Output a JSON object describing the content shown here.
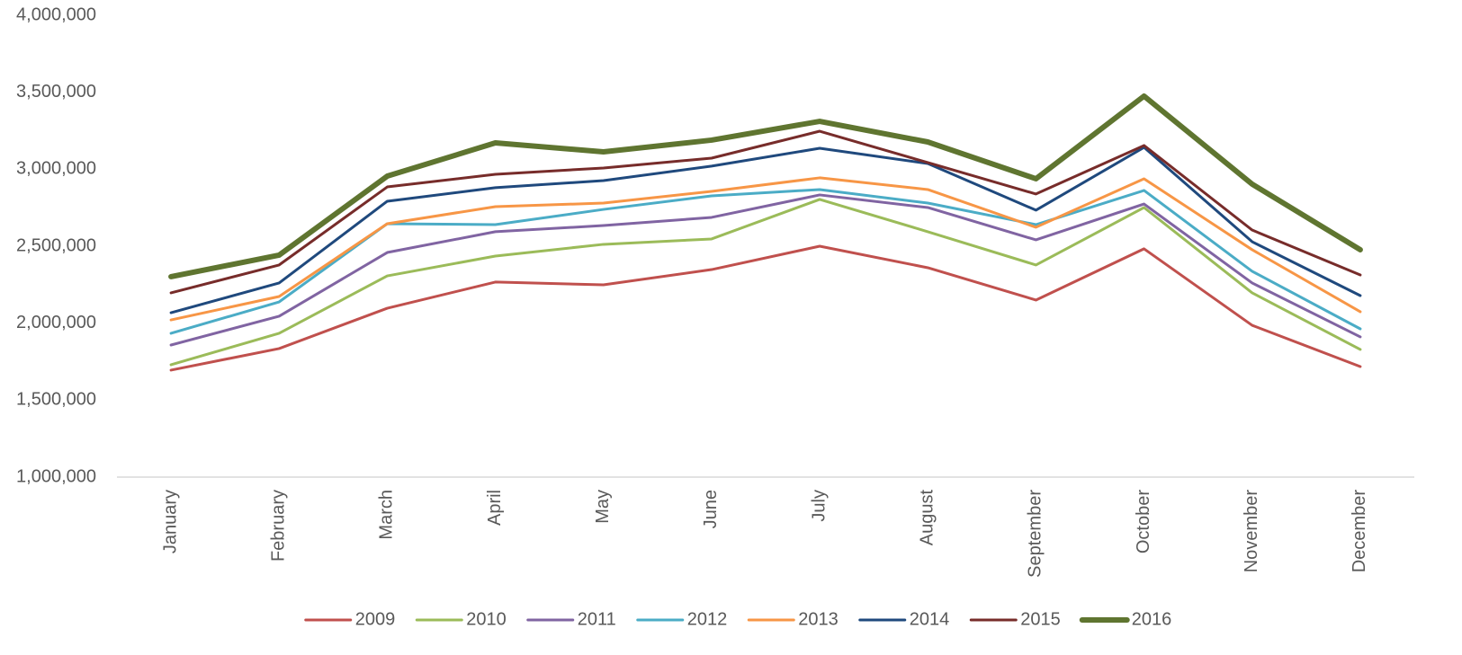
{
  "chart_data": {
    "type": "line",
    "categories": [
      "January",
      "February",
      "March",
      "April",
      "May",
      "June",
      "July",
      "August",
      "September",
      "October",
      "November",
      "December"
    ],
    "ylim": [
      1000000,
      4000000
    ],
    "yticks": [
      {
        "value": 1000000,
        "label": "1,000,000"
      },
      {
        "value": 1500000,
        "label": "1,500,000"
      },
      {
        "value": 2000000,
        "label": "2,000,000"
      },
      {
        "value": 2500000,
        "label": "2,500,000"
      },
      {
        "value": 3000000,
        "label": "3,000,000"
      },
      {
        "value": 3500000,
        "label": "3,500,000"
      },
      {
        "value": 4000000,
        "label": "4,000,000"
      }
    ],
    "grid": false,
    "legend": "bottom",
    "series": [
      {
        "name": "2009",
        "color": "#c0504d",
        "width": 3,
        "values": [
          1695000,
          1835000,
          2097000,
          2267000,
          2249000,
          2348000,
          2500000,
          2360000,
          2150000,
          2483000,
          1986000,
          1718000
        ]
      },
      {
        "name": "2010",
        "color": "#9bbb59",
        "width": 3,
        "values": [
          1730000,
          1934000,
          2307000,
          2436000,
          2512000,
          2547000,
          2804000,
          2594000,
          2378000,
          2751000,
          2197000,
          1829000
        ]
      },
      {
        "name": "2011",
        "color": "#8064a2",
        "width": 3,
        "values": [
          1858000,
          2045000,
          2459000,
          2594000,
          2634000,
          2687000,
          2833000,
          2751000,
          2541000,
          2774000,
          2261000,
          1911000
        ]
      },
      {
        "name": "2012",
        "color": "#4bacc6",
        "width": 3,
        "values": [
          1934000,
          2138000,
          2646000,
          2640000,
          2739000,
          2827000,
          2868000,
          2780000,
          2640000,
          2862000,
          2337000,
          1963000
        ]
      },
      {
        "name": "2013",
        "color": "#f79646",
        "width": 3,
        "values": [
          2021000,
          2173000,
          2646000,
          2757000,
          2780000,
          2856000,
          2944000,
          2868000,
          2623000,
          2938000,
          2477000,
          2074000
        ]
      },
      {
        "name": "2014",
        "color": "#1f497d",
        "width": 3,
        "values": [
          2068000,
          2261000,
          2792000,
          2880000,
          2926000,
          3020000,
          3136000,
          3037000,
          2734000,
          3142000,
          2529000,
          2179000
        ]
      },
      {
        "name": "2015",
        "color": "#772c2a",
        "width": 3,
        "values": [
          2197000,
          2378000,
          2885000,
          2967000,
          3008000,
          3072000,
          3247000,
          3043000,
          2839000,
          3154000,
          2605000,
          2313000
        ]
      },
      {
        "name": "2016",
        "color": "#5f7530",
        "width": 6,
        "values": [
          2302000,
          2442000,
          2955000,
          3171000,
          3113000,
          3189000,
          3311000,
          3177000,
          2938000,
          3475000,
          2903000,
          2477000
        ]
      }
    ]
  }
}
